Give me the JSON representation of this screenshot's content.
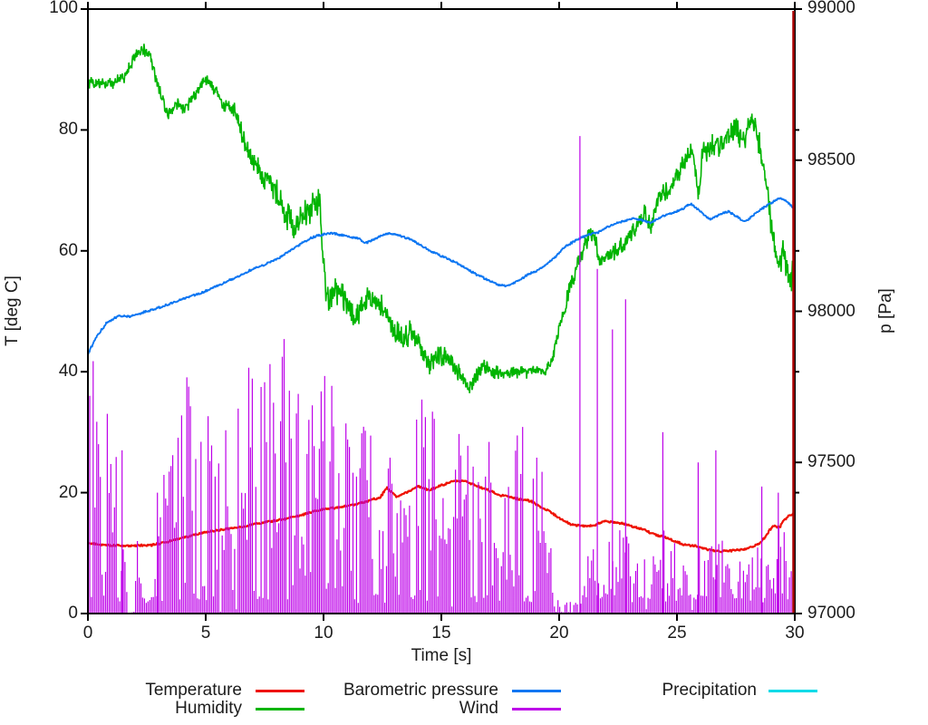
{
  "chart_data": {
    "type": "line",
    "title": "",
    "xlabel": "Time [s]",
    "x_range": [
      0,
      30
    ],
    "x_ticks": [
      0,
      5,
      10,
      15,
      20,
      25,
      30
    ],
    "y1": {
      "label": "T [deg C]",
      "range": [
        0,
        100
      ],
      "ticks": [
        0,
        20,
        40,
        60,
        80,
        100
      ]
    },
    "y2": {
      "label": "p [Pa]",
      "range": [
        97000,
        99000
      ],
      "ticks": [
        97000,
        97500,
        98000,
        98500,
        99000
      ]
    },
    "grid": false,
    "legend_position": "below-plot, 2 rows, 3 columns",
    "series": [
      {
        "name": "Temperature",
        "color": "#ee1100",
        "axis": "y1",
        "style": "line",
        "width": 2.2,
        "noise": 0.25,
        "keyframes": [
          [
            0,
            11.6
          ],
          [
            1.0,
            11.3
          ],
          [
            1.5,
            11.2
          ],
          [
            2.7,
            11.3
          ],
          [
            3.5,
            12
          ],
          [
            4.5,
            13
          ],
          [
            5.5,
            13.8
          ],
          [
            6.5,
            14.3
          ],
          [
            7.1,
            14.8
          ],
          [
            7.7,
            15.2
          ],
          [
            8.3,
            15.6
          ],
          [
            9.0,
            16.2
          ],
          [
            9.65,
            17
          ],
          [
            10.3,
            17.4
          ],
          [
            11.0,
            17.8
          ],
          [
            11.7,
            18.4
          ],
          [
            12.4,
            19.2
          ],
          [
            12.7,
            20.8
          ],
          [
            13.1,
            19.3
          ],
          [
            13.5,
            20
          ],
          [
            14.0,
            21
          ],
          [
            14.5,
            20.4
          ],
          [
            15.0,
            21.2
          ],
          [
            15.5,
            21.9
          ],
          [
            16.0,
            21.9
          ],
          [
            16.4,
            21.3
          ],
          [
            17.0,
            20.4
          ],
          [
            17.5,
            19.6
          ],
          [
            18.2,
            19
          ],
          [
            18.8,
            18.6
          ],
          [
            19.2,
            17.6
          ],
          [
            19.6,
            16.9
          ],
          [
            20.0,
            15.8
          ],
          [
            20.5,
            14.7
          ],
          [
            21.0,
            14.5
          ],
          [
            21.5,
            14.6
          ],
          [
            21.9,
            15.3
          ],
          [
            22.3,
            15.1
          ],
          [
            22.7,
            14.9
          ],
          [
            23.1,
            14.4
          ],
          [
            23.6,
            13.9
          ],
          [
            24.0,
            13.1
          ],
          [
            24.5,
            12.6
          ],
          [
            24.9,
            12
          ],
          [
            25.3,
            11.4
          ],
          [
            25.8,
            11.2
          ],
          [
            26.3,
            10.6
          ],
          [
            26.8,
            10.3
          ],
          [
            27.3,
            10.4
          ],
          [
            27.8,
            10.6
          ],
          [
            28.2,
            11
          ],
          [
            28.6,
            11.9
          ],
          [
            28.9,
            13.6
          ],
          [
            29.1,
            14.6
          ],
          [
            29.35,
            14.2
          ],
          [
            29.5,
            15.3
          ],
          [
            29.7,
            16
          ],
          [
            29.9,
            16.4
          ],
          [
            30,
            16.6
          ]
        ]
      },
      {
        "name": "Humidity",
        "color": "#00b400",
        "axis": "y1",
        "style": "line",
        "width": 1.6,
        "noise_profile": [
          [
            0,
            1.1
          ],
          [
            6,
            1.1
          ],
          [
            6.6,
            1.8
          ],
          [
            8,
            2.4
          ],
          [
            11,
            2.6
          ],
          [
            12,
            2.2
          ],
          [
            14,
            2.2
          ],
          [
            16,
            1.5
          ],
          [
            19.5,
            0.9
          ],
          [
            20.5,
            1.5
          ],
          [
            24,
            1.4
          ],
          [
            25.5,
            1.8
          ],
          [
            26.5,
            2.2
          ],
          [
            28.5,
            2.4
          ],
          [
            30,
            2.6
          ]
        ],
        "keyframes": [
          [
            0,
            88
          ],
          [
            0.5,
            87.5
          ],
          [
            1.0,
            87.8
          ],
          [
            1.5,
            88.5
          ],
          [
            2.0,
            92
          ],
          [
            2.3,
            93.5
          ],
          [
            2.6,
            92.5
          ],
          [
            3.0,
            87
          ],
          [
            3.4,
            82.5
          ],
          [
            3.8,
            84.5
          ],
          [
            4.1,
            83.5
          ],
          [
            4.5,
            85.5
          ],
          [
            5.0,
            88.5
          ],
          [
            5.4,
            86.5
          ],
          [
            5.8,
            84
          ],
          [
            6.2,
            83.5
          ],
          [
            6.45,
            80.5
          ],
          [
            6.9,
            75
          ],
          [
            7.4,
            72.5
          ],
          [
            7.9,
            70.5
          ],
          [
            8.4,
            66
          ],
          [
            8.8,
            64
          ],
          [
            9.2,
            66
          ],
          [
            9.6,
            67.5
          ],
          [
            9.85,
            68.5
          ],
          [
            9.95,
            60
          ],
          [
            10.1,
            52
          ],
          [
            10.5,
            53.5
          ],
          [
            10.9,
            52
          ],
          [
            11.3,
            49
          ],
          [
            11.7,
            51.5
          ],
          [
            12.1,
            52
          ],
          [
            12.5,
            50.5
          ],
          [
            12.9,
            47.5
          ],
          [
            13.3,
            45.5
          ],
          [
            13.7,
            46.5
          ],
          [
            14.1,
            44
          ],
          [
            14.5,
            41.5
          ],
          [
            14.9,
            43
          ],
          [
            15.3,
            42
          ],
          [
            15.7,
            40
          ],
          [
            16.0,
            38.5
          ],
          [
            16.2,
            37
          ],
          [
            16.5,
            39.5
          ],
          [
            16.8,
            41
          ],
          [
            17.2,
            40
          ],
          [
            17.6,
            39.5
          ],
          [
            18.0,
            40
          ],
          [
            18.5,
            39.8
          ],
          [
            19.0,
            40.2
          ],
          [
            19.4,
            40
          ],
          [
            19.7,
            42
          ],
          [
            20.0,
            47
          ],
          [
            20.4,
            53
          ],
          [
            20.8,
            58
          ],
          [
            21.2,
            62
          ],
          [
            21.5,
            63
          ],
          [
            21.75,
            57.5
          ],
          [
            22.0,
            59
          ],
          [
            22.4,
            60
          ],
          [
            22.8,
            61.5
          ],
          [
            23.2,
            63.5
          ],
          [
            23.6,
            66.5
          ],
          [
            23.9,
            64
          ],
          [
            24.2,
            69
          ],
          [
            24.6,
            70
          ],
          [
            25.0,
            72.5
          ],
          [
            25.4,
            75.5
          ],
          [
            25.7,
            77
          ],
          [
            25.9,
            69
          ],
          [
            26.1,
            76.5
          ],
          [
            26.4,
            77
          ],
          [
            26.8,
            77.5
          ],
          [
            27.2,
            78.5
          ],
          [
            27.5,
            81
          ],
          [
            27.8,
            78
          ],
          [
            28.1,
            80.5
          ],
          [
            28.35,
            81
          ],
          [
            28.55,
            76.5
          ],
          [
            28.8,
            71
          ],
          [
            29.05,
            63
          ],
          [
            29.3,
            58
          ],
          [
            29.5,
            59.5
          ],
          [
            29.7,
            56
          ],
          [
            29.85,
            55
          ],
          [
            30,
            58.5
          ]
        ]
      },
      {
        "name": "Barometric pressure",
        "color": "#0c76f2",
        "axis": "y2",
        "style": "line",
        "width": 1.9,
        "noise": 5,
        "keyframes": [
          [
            0,
            97860
          ],
          [
            0.4,
            97920
          ],
          [
            0.8,
            97962
          ],
          [
            1.3,
            97985
          ],
          [
            1.8,
            97982
          ],
          [
            2.3,
            97995
          ],
          [
            3.0,
            98012
          ],
          [
            3.6,
            98028
          ],
          [
            4.2,
            98045
          ],
          [
            4.8,
            98060
          ],
          [
            5.4,
            98080
          ],
          [
            6.0,
            98102
          ],
          [
            6.6,
            98124
          ],
          [
            7.0,
            98140
          ],
          [
            7.6,
            98158
          ],
          [
            8.2,
            98180
          ],
          [
            8.8,
            98212
          ],
          [
            9.4,
            98240
          ],
          [
            9.8,
            98252
          ],
          [
            10.4,
            98258
          ],
          [
            11.0,
            98248
          ],
          [
            11.5,
            98240
          ],
          [
            11.8,
            98226
          ],
          [
            12.2,
            98240
          ],
          [
            12.7,
            98258
          ],
          [
            13.2,
            98252
          ],
          [
            13.7,
            98238
          ],
          [
            14.2,
            98214
          ],
          [
            14.7,
            98194
          ],
          [
            15.2,
            98176
          ],
          [
            15.7,
            98158
          ],
          [
            16.2,
            98134
          ],
          [
            16.7,
            98114
          ],
          [
            17.1,
            98100
          ],
          [
            17.5,
            98086
          ],
          [
            17.9,
            98084
          ],
          [
            18.3,
            98104
          ],
          [
            18.7,
            98122
          ],
          [
            19.2,
            98140
          ],
          [
            19.7,
            98170
          ],
          [
            20.2,
            98210
          ],
          [
            20.7,
            98235
          ],
          [
            21.2,
            98252
          ],
          [
            21.7,
            98262
          ],
          [
            22.2,
            98285
          ],
          [
            22.7,
            98298
          ],
          [
            23.2,
            98308
          ],
          [
            23.6,
            98300
          ],
          [
            23.9,
            98294
          ],
          [
            24.3,
            98312
          ],
          [
            24.8,
            98326
          ],
          [
            25.2,
            98338
          ],
          [
            25.6,
            98356
          ],
          [
            26.0,
            98330
          ],
          [
            26.4,
            98304
          ],
          [
            26.8,
            98320
          ],
          [
            27.2,
            98330
          ],
          [
            27.6,
            98310
          ],
          [
            27.9,
            98296
          ],
          [
            28.3,
            98322
          ],
          [
            28.7,
            98344
          ],
          [
            29.1,
            98364
          ],
          [
            29.4,
            98376
          ],
          [
            29.7,
            98362
          ],
          [
            30,
            98338
          ]
        ]
      },
      {
        "name": "Wind",
        "color": "#bd00e8",
        "axis": "y1",
        "style": "impulses",
        "impulse_dt": 0.075,
        "width": 1.2,
        "envelope": [
          [
            0,
            34
          ],
          [
            0.15,
            48
          ],
          [
            0.5,
            30
          ],
          [
            0.9,
            40
          ],
          [
            1.2,
            26
          ],
          [
            1.4,
            16
          ],
          [
            1.7,
            5
          ],
          [
            2.2,
            7
          ],
          [
            2.9,
            6
          ],
          [
            3.2,
            28
          ],
          [
            3.6,
            34
          ],
          [
            4.2,
            40
          ],
          [
            4.6,
            30
          ],
          [
            5.2,
            38
          ],
          [
            5.6,
            30
          ],
          [
            6.2,
            34
          ],
          [
            6.8,
            44
          ],
          [
            7.4,
            40
          ],
          [
            8.0,
            46
          ],
          [
            8.5,
            48
          ],
          [
            9.0,
            42
          ],
          [
            9.5,
            40
          ],
          [
            10.2,
            45
          ],
          [
            10.8,
            36
          ],
          [
            11.5,
            40
          ],
          [
            12.2,
            34
          ],
          [
            12.8,
            32
          ],
          [
            13.5,
            30
          ],
          [
            13.9,
            36
          ],
          [
            14.5,
            35
          ],
          [
            15.2,
            30
          ],
          [
            15.8,
            34
          ],
          [
            16.5,
            30
          ],
          [
            17.2,
            28
          ],
          [
            18.0,
            30
          ],
          [
            18.4,
            34
          ],
          [
            19.0,
            30
          ],
          [
            19.5,
            22
          ],
          [
            19.8,
            4
          ],
          [
            20.3,
            2
          ],
          [
            20.8,
            3
          ],
          [
            21.3,
            12
          ],
          [
            21.8,
            8
          ],
          [
            22.3,
            16
          ],
          [
            22.8,
            18
          ],
          [
            23.3,
            24
          ],
          [
            23.8,
            14
          ],
          [
            24.3,
            10
          ],
          [
            24.7,
            20
          ],
          [
            25.2,
            8
          ],
          [
            25.6,
            15
          ],
          [
            26.1,
            12
          ],
          [
            26.6,
            20
          ],
          [
            27.1,
            10
          ],
          [
            27.6,
            12
          ],
          [
            28.1,
            8
          ],
          [
            28.6,
            18
          ],
          [
            29.1,
            10
          ],
          [
            29.4,
            16
          ],
          [
            29.8,
            12
          ],
          [
            30,
            10
          ]
        ],
        "extra_spikes": [
          [
            1.45,
            27
          ],
          [
            2.1,
            12
          ],
          [
            2.95,
            20
          ],
          [
            20.88,
            79
          ],
          [
            21.62,
            57
          ],
          [
            22.26,
            47
          ],
          [
            22.82,
            52
          ],
          [
            24.4,
            30
          ],
          [
            25.9,
            25
          ],
          [
            26.65,
            27
          ],
          [
            28.6,
            21
          ],
          [
            29.3,
            20
          ]
        ]
      },
      {
        "name": "Precipitation",
        "color": "#00dbe8",
        "axis": "y1",
        "style": "line",
        "width": 1.6,
        "noise": 0,
        "keyframes": [
          [
            0,
            0
          ],
          [
            30,
            0
          ]
        ]
      }
    ],
    "annotation_line": {
      "x": 30,
      "color": "#aa0000",
      "note": "dark red vertical line spanning plot height at right edge"
    }
  },
  "legend": {
    "entries": [
      {
        "label": "Temperature"
      },
      {
        "label": "Humidity"
      },
      {
        "label": "Barometric pressure"
      },
      {
        "label": "Wind"
      },
      {
        "label": "Precipitation"
      }
    ]
  }
}
